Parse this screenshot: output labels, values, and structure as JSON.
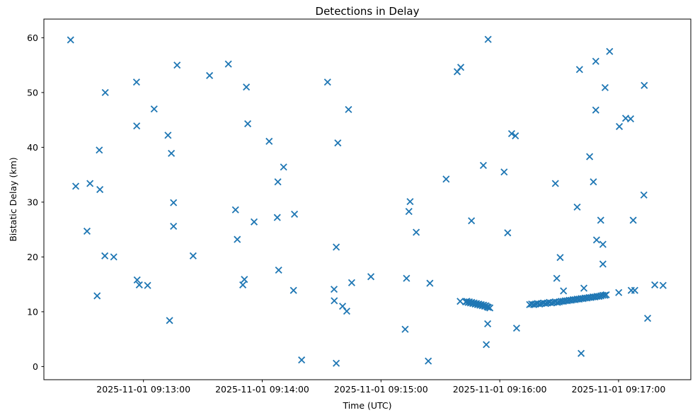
{
  "figure": {
    "title": "Detections in Delay",
    "xlabel": "Time (UTC)",
    "ylabel": "Bistatic Delay (km)"
  },
  "chart_data": {
    "type": "scatter",
    "title": "Detections in Delay",
    "xlabel": "Time (UTC)",
    "ylabel": "Bistatic Delay (km)",
    "grid": false,
    "legend": "none",
    "marker": "x",
    "marker_color": "#1f77b4",
    "background_color": "#ffffff",
    "x_unit": "seconds since 2025-11-01 09:12:00 UTC",
    "x_axis": {
      "range": [
        9.7,
        336.5
      ],
      "ticks": [
        60,
        120,
        180,
        240,
        300
      ],
      "tick_labels": [
        "2025-11-01 09:13:00",
        "2025-11-01 09:14:00",
        "2025-11-01 09:15:00",
        "2025-11-01 09:16:00",
        "2025-11-01 09:17:00"
      ]
    },
    "y_axis": {
      "range": [
        -2.4,
        63.4
      ],
      "ticks": [
        0,
        10,
        20,
        30,
        40,
        50,
        60
      ],
      "tick_labels": [
        "0",
        "10",
        "20",
        "30",
        "40",
        "50",
        "60"
      ]
    },
    "points": [
      [
        23.2,
        59.6
      ],
      [
        77,
        55
      ],
      [
        56.5,
        51.9
      ],
      [
        40.7,
        50
      ],
      [
        65.4,
        47
      ],
      [
        56.6,
        43.9
      ],
      [
        72.4,
        42.2
      ],
      [
        37.7,
        39.5
      ],
      [
        74.1,
        38.9
      ],
      [
        25.8,
        32.9
      ],
      [
        33,
        33.4
      ],
      [
        38,
        32.3
      ],
      [
        31.5,
        24.7
      ],
      [
        75.2,
        29.9
      ],
      [
        75.2,
        25.6
      ],
      [
        40.5,
        20.2
      ],
      [
        45,
        20
      ],
      [
        85.1,
        20.2
      ],
      [
        56.8,
        15.8
      ],
      [
        57.9,
        14.9
      ],
      [
        62.1,
        14.8
      ],
      [
        36.6,
        12.9
      ],
      [
        73.2,
        8.4
      ],
      [
        102.9,
        55.2
      ],
      [
        93.4,
        53.1
      ],
      [
        112,
        51
      ],
      [
        153,
        51.9
      ],
      [
        163.6,
        46.9
      ],
      [
        112.7,
        44.3
      ],
      [
        123.5,
        41.1
      ],
      [
        158.2,
        40.8
      ],
      [
        130.8,
        36.4
      ],
      [
        127.9,
        33.7
      ],
      [
        106.5,
        28.6
      ],
      [
        127.6,
        27.2
      ],
      [
        136.3,
        27.8
      ],
      [
        115.9,
        26.4
      ],
      [
        107.4,
        23.2
      ],
      [
        157.4,
        21.8
      ],
      [
        128.3,
        17.6
      ],
      [
        111,
        15.9
      ],
      [
        110.2,
        14.9
      ],
      [
        135.8,
        13.9
      ],
      [
        156.3,
        14.1
      ],
      [
        165.2,
        15.3
      ],
      [
        156.4,
        12
      ],
      [
        160.6,
        11
      ],
      [
        162.7,
        10.1
      ],
      [
        139.9,
        1.2
      ],
      [
        157.4,
        0.6
      ],
      [
        234.1,
        59.7
      ],
      [
        218.5,
        53.8
      ],
      [
        220.3,
        54.6
      ],
      [
        246,
        42.5
      ],
      [
        247.9,
        42.1
      ],
      [
        231.7,
        36.7
      ],
      [
        242.2,
        35.5
      ],
      [
        212.9,
        34.2
      ],
      [
        194.7,
        30.1
      ],
      [
        194.1,
        28.3
      ],
      [
        225.7,
        26.6
      ],
      [
        197.8,
        24.5
      ],
      [
        244,
        24.4
      ],
      [
        174.9,
        16.4
      ],
      [
        192.9,
        16.1
      ],
      [
        204.7,
        15.2
      ],
      [
        192.2,
        6.8
      ],
      [
        233.9,
        7.8
      ],
      [
        248.5,
        7
      ],
      [
        233.2,
        4
      ],
      [
        203.9,
        1
      ],
      [
        295.5,
        57.5
      ],
      [
        288.5,
        55.7
      ],
      [
        280.3,
        54.2
      ],
      [
        293.2,
        50.9
      ],
      [
        313,
        51.3
      ],
      [
        288.5,
        46.8
      ],
      [
        303.6,
        45.3
      ],
      [
        306.1,
        45.2
      ],
      [
        300.4,
        43.8
      ],
      [
        285.4,
        38.3
      ],
      [
        268.1,
        33.4
      ],
      [
        287.3,
        33.7
      ],
      [
        312.8,
        31.3
      ],
      [
        279.1,
        29.1
      ],
      [
        291,
        26.7
      ],
      [
        307.4,
        26.7
      ],
      [
        288.9,
        23.1
      ],
      [
        292.1,
        22.3
      ],
      [
        270.5,
        19.9
      ],
      [
        292.1,
        18.7
      ],
      [
        268.8,
        16.1
      ],
      [
        272.2,
        13.8
      ],
      [
        282.5,
        14.3
      ],
      [
        300.1,
        13.5
      ],
      [
        306.4,
        13.9
      ],
      [
        308.2,
        13.9
      ],
      [
        318.3,
        14.9
      ],
      [
        322.5,
        14.8
      ],
      [
        314.7,
        8.8
      ],
      [
        281.1,
        2.4
      ],
      [
        220,
        11.9
      ],
      [
        222.8,
        11.8
      ],
      [
        223.4,
        11.9
      ],
      [
        224,
        11.7
      ],
      [
        224.6,
        11.8
      ],
      [
        225.2,
        11.6
      ],
      [
        225.8,
        11.7
      ],
      [
        226.4,
        11.5
      ],
      [
        227,
        11.6
      ],
      [
        227.6,
        11.4
      ],
      [
        228.2,
        11.5
      ],
      [
        228.8,
        11.3
      ],
      [
        229.4,
        11.4
      ],
      [
        230,
        11.2
      ],
      [
        230.6,
        11.3
      ],
      [
        231.2,
        11.1
      ],
      [
        231.8,
        11.2
      ],
      [
        232.4,
        11
      ],
      [
        233,
        11.1
      ],
      [
        233.6,
        10.9
      ],
      [
        234.2,
        10.8
      ],
      [
        235,
        10.7
      ],
      [
        255.1,
        11.3
      ],
      [
        256.1,
        11.4
      ],
      [
        257.1,
        11.3
      ],
      [
        258.1,
        11.4
      ],
      [
        259.1,
        11.5
      ],
      [
        260.1,
        11.4
      ],
      [
        261.1,
        11.5
      ],
      [
        262.1,
        11.6
      ],
      [
        263.1,
        11.5
      ],
      [
        264.1,
        11.6
      ],
      [
        265.1,
        11.7
      ],
      [
        266.1,
        11.6
      ],
      [
        267.1,
        11.7
      ],
      [
        268.1,
        11.8
      ],
      [
        269.1,
        11.7
      ],
      [
        270.1,
        11.8
      ],
      [
        271.1,
        11.9
      ],
      [
        272.1,
        11.9
      ],
      [
        273.1,
        12
      ],
      [
        274.1,
        12
      ],
      [
        275.1,
        12.1
      ],
      [
        276.1,
        12.1
      ],
      [
        277.1,
        12.2
      ],
      [
        278.1,
        12.2
      ],
      [
        279.1,
        12.3
      ],
      [
        280.1,
        12.3
      ],
      [
        281.1,
        12.4
      ],
      [
        282.1,
        12.4
      ],
      [
        283.1,
        12.5
      ],
      [
        284.1,
        12.5
      ],
      [
        285.1,
        12.6
      ],
      [
        286.1,
        12.6
      ],
      [
        287.1,
        12.7
      ],
      [
        288.1,
        12.7
      ],
      [
        289.1,
        12.8
      ],
      [
        290.1,
        12.8
      ],
      [
        291.1,
        12.9
      ],
      [
        292.1,
        13
      ],
      [
        293.1,
        13
      ],
      [
        293.8,
        13.1
      ]
    ]
  }
}
